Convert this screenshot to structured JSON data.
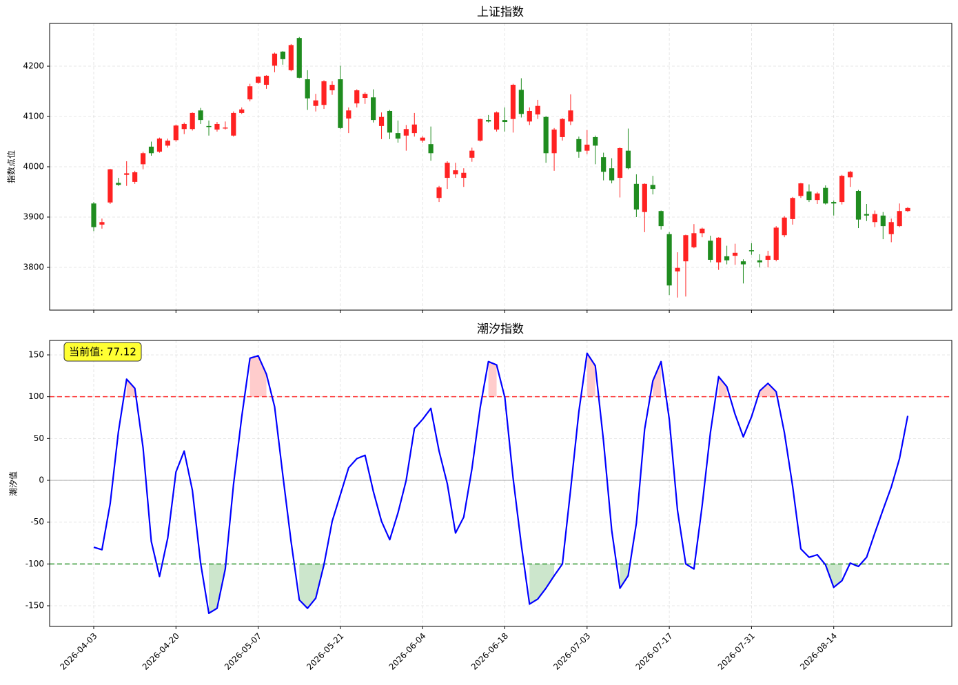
{
  "chart_data": [
    {
      "type": "candlestick",
      "title": "上证指数",
      "ylabel": "指数点位",
      "up_color": "#ff2222",
      "down_color": "#1f8c1f",
      "grid": true,
      "ylim": [
        3715,
        4285
      ],
      "yticks": [
        3800,
        3900,
        4000,
        4100,
        4200
      ],
      "open": [
        3927,
        3885,
        3929,
        3968,
        3984,
        3970,
        4005,
        4040,
        4030,
        4042,
        4053,
        4075,
        4075,
        4112,
        4081,
        4074,
        4076,
        4062,
        4107,
        4134,
        4167,
        4163,
        4201,
        4229,
        4192,
        4256,
        4174,
        4121,
        4123,
        4152,
        4174,
        4096,
        4126,
        4137,
        4138,
        4081,
        4111,
        4067,
        4062,
        4067,
        4052,
        4045,
        3938,
        3978,
        3985,
        3978,
        4018,
        4052,
        4093,
        4074,
        4093,
        4095,
        4153,
        4090,
        4104,
        4099,
        4027,
        4059,
        4090,
        4055,
        4032,
        4059,
        4019,
        3997,
        3978,
        4032,
        3966,
        3910,
        3964,
        3912,
        3866,
        3792,
        3812,
        3840,
        3868,
        3853,
        3810,
        3822,
        3823,
        3812,
        3834,
        3814,
        3815,
        3815,
        3864,
        3896,
        3942,
        3951,
        3934,
        3958,
        3930,
        3930,
        3979,
        3952,
        3906,
        3890,
        3903,
        3866,
        3882,
        3912
      ],
      "high": [
        3930,
        3897,
        3996,
        3978,
        4011,
        3992,
        4030,
        4050,
        4058,
        4056,
        4084,
        4088,
        4108,
        4117,
        4092,
        4089,
        4090,
        4110,
        4118,
        4165,
        4180,
        4182,
        4227,
        4230,
        4244,
        4258,
        4192,
        4145,
        4172,
        4170,
        4201,
        4118,
        4154,
        4148,
        4154,
        4108,
        4113,
        4092,
        4083,
        4107,
        4061,
        4080,
        3962,
        4011,
        4008,
        3997,
        4038,
        4096,
        4103,
        4110,
        4118,
        4165,
        4176,
        4118,
        4133,
        4101,
        4077,
        4097,
        4144,
        4060,
        4073,
        4062,
        4028,
        4017,
        4039,
        4076,
        3985,
        3967,
        3982,
        3913,
        3870,
        3830,
        3865,
        3886,
        3879,
        3863,
        3860,
        3843,
        3847,
        3816,
        3848,
        3826,
        3833,
        3882,
        3902,
        3940,
        3968,
        3965,
        3950,
        3963,
        3933,
        3984,
        3992,
        3954,
        3926,
        3913,
        3910,
        3897,
        3927,
        3920
      ],
      "low": [
        3872,
        3877,
        3926,
        3962,
        3962,
        3966,
        3995,
        4022,
        4028,
        4038,
        4050,
        4065,
        4072,
        4085,
        4062,
        4070,
        4074,
        4060,
        4105,
        4130,
        4165,
        4155,
        4188,
        4203,
        4190,
        4176,
        4113,
        4110,
        4115,
        4143,
        4075,
        4067,
        4118,
        4125,
        4088,
        4055,
        4055,
        4048,
        4032,
        4060,
        4048,
        4012,
        3930,
        3956,
        3978,
        3960,
        4010,
        4050,
        4088,
        4070,
        4070,
        4068,
        4098,
        4083,
        4095,
        4008,
        3992,
        4052,
        4083,
        4018,
        4025,
        4005,
        3973,
        3967,
        3939,
        3995,
        3900,
        3870,
        3945,
        3875,
        3745,
        3740,
        3742,
        3838,
        3860,
        3810,
        3795,
        3806,
        3805,
        3768,
        3825,
        3800,
        3800,
        3812,
        3860,
        3885,
        3938,
        3930,
        3926,
        3925,
        3903,
        3925,
        3960,
        3878,
        3892,
        3880,
        3856,
        3850,
        3880,
        3910
      ],
      "close": [
        3880,
        3890,
        3995,
        3964,
        3987,
        3989,
        4027,
        4027,
        4056,
        4052,
        4082,
        4085,
        4107,
        4093,
        4079,
        4085,
        4078,
        4107,
        4114,
        4160,
        4179,
        4181,
        4225,
        4214,
        4242,
        4177,
        4136,
        4132,
        4170,
        4163,
        4077,
        4112,
        4152,
        4145,
        4093,
        4099,
        4068,
        4056,
        4075,
        4084,
        4058,
        4027,
        3959,
        4008,
        3993,
        3988,
        4032,
        4095,
        4090,
        4108,
        4089,
        4163,
        4105,
        4111,
        4121,
        4027,
        4074,
        4095,
        4112,
        4030,
        4044,
        4042,
        3990,
        3973,
        4037,
        3997,
        3915,
        3966,
        3956,
        3882,
        3764,
        3799,
        3864,
        3868,
        3877,
        3815,
        3859,
        3814,
        3829,
        3806,
        3832,
        3810,
        3823,
        3879,
        3899,
        3938,
        3967,
        3934,
        3947,
        3927,
        3927,
        3982,
        3990,
        3895,
        3903,
        3906,
        3882,
        3890,
        3912,
        3918
      ]
    },
    {
      "type": "line",
      "title": "潮汐指数",
      "ylabel": "潮汐值",
      "color": "#0000ff",
      "grid": true,
      "ylim": [
        -174.7,
        167.3
      ],
      "yticks": [
        -150,
        -100,
        -50,
        0,
        50,
        100,
        150
      ],
      "hlines": [
        {
          "value": 100,
          "color": "#ff0000",
          "dashed": true
        },
        {
          "value": -100,
          "color": "#008000",
          "dashed": true
        },
        {
          "value": 0,
          "color": "#808080",
          "dashed": false
        }
      ],
      "above_fill": "#ffcccc",
      "below_fill": "#cce6cc",
      "annotation": "当前值: 77.12",
      "categories": [
        "2026-04-03",
        null,
        null,
        null,
        null,
        null,
        null,
        null,
        null,
        null,
        "2026-04-20",
        null,
        null,
        null,
        null,
        null,
        null,
        null,
        null,
        null,
        "2026-05-07",
        null,
        null,
        null,
        null,
        null,
        null,
        null,
        null,
        null,
        "2026-05-21",
        null,
        null,
        null,
        null,
        null,
        null,
        null,
        null,
        null,
        "2026-06-04",
        null,
        null,
        null,
        null,
        null,
        null,
        null,
        null,
        null,
        "2026-06-18",
        null,
        null,
        null,
        null,
        null,
        null,
        null,
        null,
        null,
        "2026-07-03",
        null,
        null,
        null,
        null,
        null,
        null,
        null,
        null,
        null,
        "2026-07-17",
        null,
        null,
        null,
        null,
        null,
        null,
        null,
        null,
        null,
        "2026-07-31",
        null,
        null,
        null,
        null,
        null,
        null,
        null,
        null,
        null,
        "2026-08-14",
        null,
        null,
        null,
        null,
        null,
        null,
        null,
        null,
        null
      ],
      "values": [
        -80,
        -83,
        -28,
        58,
        121,
        110,
        39,
        -73,
        -115,
        -69,
        10,
        35,
        -12,
        -99,
        -159,
        -153,
        -106,
        -5,
        76,
        146,
        149,
        127,
        88,
        6,
        -73,
        -143,
        -153,
        -141,
        -101,
        -49,
        -17,
        15,
        26,
        30,
        -13,
        -49,
        -71,
        -39,
        0,
        62,
        73,
        86,
        35,
        -4,
        -63,
        -44,
        14,
        87,
        142,
        138,
        99,
        3,
        -77,
        -148,
        -142,
        -129,
        -114,
        -100,
        -11,
        82,
        152,
        137,
        47,
        -60,
        -129,
        -114,
        -51,
        61,
        119,
        142,
        73,
        -36,
        -100,
        -106,
        -30,
        57,
        124,
        112,
        79,
        52,
        76,
        107,
        116,
        106,
        57,
        -7,
        -82,
        -92,
        -89,
        -101,
        -128,
        -120,
        -99,
        -103,
        -92,
        -63,
        -35,
        -8,
        26,
        77.12
      ]
    }
  ]
}
